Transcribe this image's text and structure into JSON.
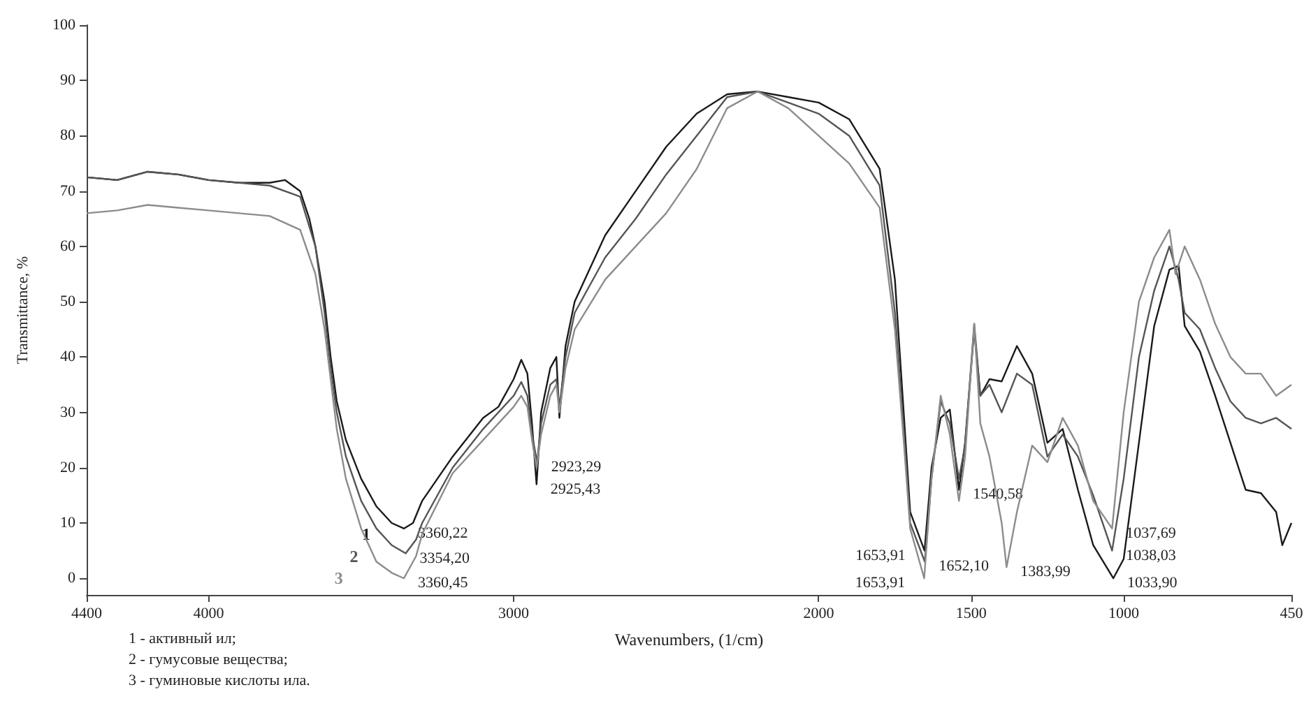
{
  "chart_data": {
    "type": "line",
    "xlabel": "Wavenumbers, (1/cm)",
    "ylabel": "Transmittance, %",
    "xlim": [
      4400,
      450
    ],
    "xticks": [
      4400,
      4000,
      3000,
      2000,
      1500,
      1000,
      450
    ],
    "ylim": [
      -3,
      100
    ],
    "yticks": [
      0,
      10,
      20,
      30,
      40,
      50,
      60,
      70,
      80,
      90,
      100
    ],
    "grid": false,
    "legend": false,
    "marker": "none",
    "line_style": "solid",
    "annotations": [
      {
        "text": "3360,22",
        "x": 3360,
        "y": 9
      },
      {
        "text": "3354,20",
        "x": 3354,
        "y": 4.5
      },
      {
        "text": "3360,45",
        "x": 3360,
        "y": 0
      },
      {
        "text": "2925,43",
        "x": 2925,
        "y": 17
      },
      {
        "text": "2923,29",
        "x": 2923,
        "y": 21
      },
      {
        "text": "1652,10",
        "x": 1652,
        "y": 3
      },
      {
        "text": "1653,91",
        "x": 1654,
        "y": 0
      },
      {
        "text": "1653,91",
        "x": 1653,
        "y": 5
      },
      {
        "text": "1540,58",
        "x": 1540,
        "y": 16
      },
      {
        "text": "1383,99",
        "x": 1384,
        "y": 2
      },
      {
        "text": "1037,69",
        "x": 1038,
        "y": 9
      },
      {
        "text": "1038,03",
        "x": 1038,
        "y": 5
      },
      {
        "text": "1033,90",
        "x": 1034,
        "y": 0
      },
      "1 - активный ил;",
      "2 - гумусовые вещества;",
      "3 - гуминовые кислоты ила."
    ],
    "series": [
      {
        "name": "1",
        "color": "#1a1a1a",
        "x": [
          4400,
          4300,
          4200,
          4100,
          4000,
          3900,
          3800,
          3750,
          3700,
          3670,
          3650,
          3620,
          3600,
          3580,
          3550,
          3500,
          3450,
          3400,
          3360,
          3330,
          3300,
          3200,
          3100,
          3050,
          3000,
          2975,
          2955,
          2940,
          2925,
          2910,
          2880,
          2860,
          2850,
          2830,
          2800,
          2700,
          2600,
          2500,
          2400,
          2300,
          2200,
          2100,
          2000,
          1900,
          1800,
          1750,
          1720,
          1700,
          1653,
          1630,
          1600,
          1570,
          1540,
          1520,
          1490,
          1470,
          1440,
          1400,
          1350,
          1300,
          1250,
          1200,
          1150,
          1100,
          1034,
          1000,
          950,
          900,
          850,
          820,
          800,
          750,
          700,
          650,
          600,
          550,
          500,
          480,
          450
        ],
        "values": [
          72.5,
          72,
          73.5,
          73,
          72,
          71.5,
          71.5,
          72,
          70,
          65,
          60,
          50,
          40,
          32,
          25,
          18,
          13,
          10,
          9,
          10,
          14,
          22,
          29,
          31,
          36,
          39.5,
          37,
          28,
          17,
          30,
          38,
          40,
          29,
          42,
          50,
          62,
          70,
          78,
          84,
          87.5,
          88,
          87,
          86,
          83,
          74,
          54,
          29,
          12,
          5,
          20,
          29,
          30.5,
          16,
          24.5,
          45,
          33,
          36,
          35.6,
          42,
          37,
          24.5,
          27,
          16,
          6,
          0,
          3.5,
          24.5,
          45.6,
          55.8,
          56.5,
          45.6,
          41,
          33,
          24.5,
          16,
          15.4,
          12,
          6,
          10
        ]
      },
      {
        "name": "2",
        "color": "#555555",
        "x": [
          4400,
          4300,
          4200,
          4100,
          4000,
          3900,
          3800,
          3700,
          3650,
          3620,
          3600,
          3580,
          3550,
          3500,
          3450,
          3400,
          3354,
          3320,
          3300,
          3200,
          3100,
          3000,
          2975,
          2955,
          2940,
          2923,
          2910,
          2880,
          2860,
          2850,
          2830,
          2800,
          2700,
          2600,
          2500,
          2400,
          2300,
          2200,
          2100,
          2000,
          1900,
          1800,
          1750,
          1720,
          1700,
          1652,
          1630,
          1600,
          1570,
          1540,
          1520,
          1490,
          1470,
          1440,
          1400,
          1350,
          1300,
          1250,
          1200,
          1150,
          1100,
          1038,
          1000,
          950,
          900,
          850,
          820,
          800,
          750,
          700,
          650,
          600,
          550,
          500,
          450
        ],
        "values": [
          72.5,
          72,
          73.5,
          73,
          72,
          71.5,
          71,
          69,
          60,
          48,
          38,
          30,
          22,
          14,
          9,
          6,
          4.5,
          7,
          10,
          20,
          27,
          33,
          35.5,
          33,
          26,
          21,
          28,
          35,
          36,
          31,
          40,
          48,
          58,
          65,
          73,
          80,
          87,
          88,
          86,
          84,
          80,
          71,
          48,
          26,
          10,
          3,
          18,
          32,
          28,
          18,
          24,
          46,
          33,
          35,
          30,
          37,
          35,
          22,
          26,
          22,
          15,
          5,
          18,
          40,
          52,
          60,
          54,
          48,
          45,
          38,
          32,
          29,
          28,
          29,
          27
        ]
      },
      {
        "name": "3",
        "color": "#8c8c8c",
        "x": [
          4400,
          4300,
          4200,
          4100,
          4000,
          3900,
          3800,
          3700,
          3650,
          3620,
          3600,
          3580,
          3550,
          3500,
          3450,
          3400,
          3360,
          3320,
          3300,
          3200,
          3100,
          3000,
          2975,
          2955,
          2940,
          2925,
          2910,
          2880,
          2860,
          2850,
          2830,
          2800,
          2700,
          2600,
          2500,
          2400,
          2300,
          2200,
          2100,
          2000,
          1900,
          1800,
          1750,
          1720,
          1700,
          1654,
          1630,
          1600,
          1570,
          1540,
          1520,
          1490,
          1470,
          1440,
          1400,
          1384,
          1350,
          1300,
          1250,
          1200,
          1150,
          1100,
          1038,
          1000,
          950,
          900,
          850,
          830,
          800,
          750,
          700,
          650,
          600,
          550,
          500,
          450
        ],
        "values": [
          66,
          66.5,
          67.5,
          67,
          66.5,
          66,
          65.5,
          63,
          55,
          45,
          36,
          27,
          18,
          9,
          3,
          1,
          0,
          4,
          8,
          19,
          25,
          31,
          33,
          31,
          25,
          20,
          26,
          33,
          35,
          30,
          38,
          45,
          54,
          60,
          66,
          74,
          85,
          88,
          85,
          80,
          75,
          67,
          45,
          24,
          9,
          0,
          18,
          33,
          26,
          14,
          22,
          46,
          28,
          22,
          10,
          2,
          12,
          24,
          21,
          29,
          24,
          14,
          9,
          30,
          50,
          58,
          63,
          55,
          60,
          54,
          46,
          40,
          37,
          37,
          33,
          35
        ]
      }
    ]
  }
}
